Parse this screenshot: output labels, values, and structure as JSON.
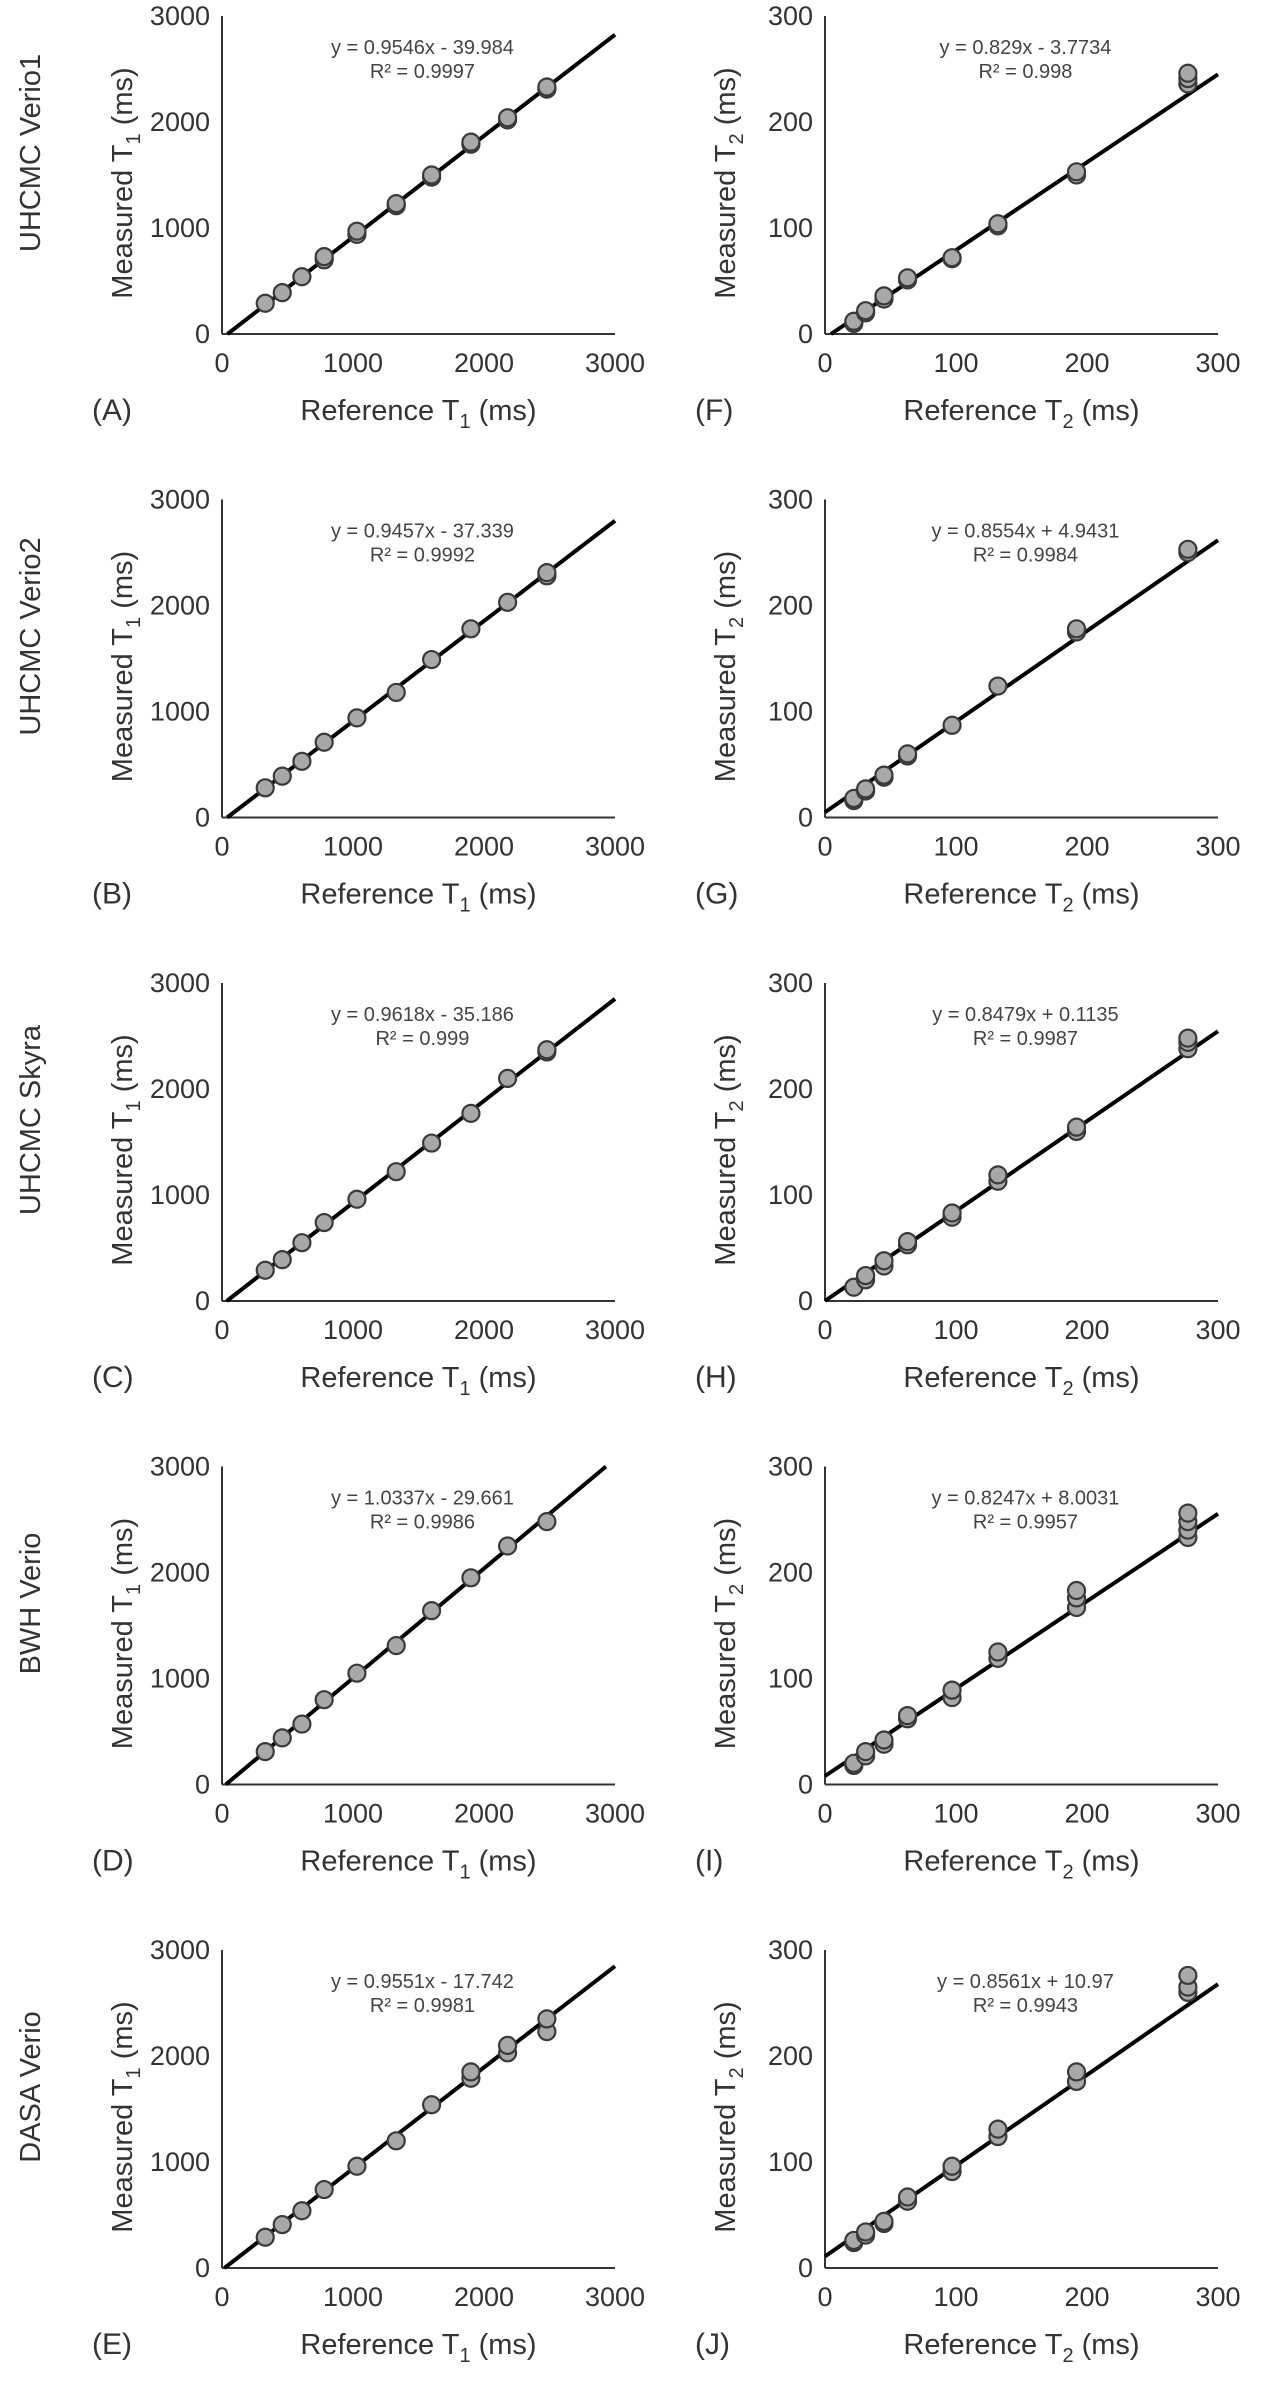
{
  "figure": {
    "row_labels": [
      "UHCMC Verio1",
      "UHCMC Verio2",
      "UHCMC Skyra",
      "BWH Verio",
      "DASA Verio"
    ]
  },
  "chart_data": [
    {
      "id": "A",
      "type": "scatter",
      "panel_letter": "(A)",
      "row_label": "UHCMC Verio1",
      "xlabel": "Reference T",
      "xlabel_sub": "1",
      "xlabel_unit": " (ms)",
      "ylabel": "Measured T",
      "ylabel_sub": "1",
      "ylabel_unit": " (ms)",
      "xlim": [
        0,
        3000
      ],
      "ylim": [
        0,
        3000
      ],
      "xticks": [
        0,
        1000,
        2000,
        3000
      ],
      "yticks": [
        0,
        1000,
        2000,
        3000
      ],
      "equation": "y = 0.9546x - 39.984",
      "r2": "R² = 0.9997",
      "slope": 0.9546,
      "intercept": -39.984,
      "points": [
        [
          330,
          290
        ],
        [
          460,
          390
        ],
        [
          610,
          540
        ],
        [
          780,
          700
        ],
        [
          780,
          730
        ],
        [
          1030,
          940
        ],
        [
          1030,
          970
        ],
        [
          1330,
          1210
        ],
        [
          1330,
          1230
        ],
        [
          1600,
          1480
        ],
        [
          1600,
          1500
        ],
        [
          1900,
          1790
        ],
        [
          1900,
          1810
        ],
        [
          2180,
          2020
        ],
        [
          2180,
          2040
        ],
        [
          2480,
          2310
        ],
        [
          2480,
          2330
        ]
      ]
    },
    {
      "id": "F",
      "type": "scatter",
      "panel_letter": "(F)",
      "row_label": "UHCMC Verio1",
      "xlabel": "Reference T",
      "xlabel_sub": "2",
      "xlabel_unit": " (ms)",
      "ylabel": "Measured T",
      "ylabel_sub": "2",
      "ylabel_unit": " (ms)",
      "xlim": [
        0,
        300
      ],
      "ylim": [
        0,
        300
      ],
      "xticks": [
        0,
        100,
        200,
        300
      ],
      "yticks": [
        0,
        100,
        200,
        300
      ],
      "equation": "y = 0.829x - 3.7734",
      "r2": "R² = 0.998",
      "slope": 0.829,
      "intercept": -3.7734,
      "points": [
        [
          22,
          10
        ],
        [
          22,
          12
        ],
        [
          31,
          20
        ],
        [
          31,
          22
        ],
        [
          45,
          33
        ],
        [
          45,
          36
        ],
        [
          63,
          51
        ],
        [
          63,
          53
        ],
        [
          97,
          71
        ],
        [
          97,
          72
        ],
        [
          132,
          102
        ],
        [
          132,
          104
        ],
        [
          192,
          150
        ],
        [
          192,
          153
        ],
        [
          277,
          236
        ],
        [
          277,
          241
        ],
        [
          277,
          246
        ]
      ]
    },
    {
      "id": "B",
      "type": "scatter",
      "panel_letter": "(B)",
      "row_label": "UHCMC Verio2",
      "xlabel": "Reference T",
      "xlabel_sub": "1",
      "xlabel_unit": " (ms)",
      "ylabel": "Measured T",
      "ylabel_sub": "1",
      "ylabel_unit": " (ms)",
      "xlim": [
        0,
        3000
      ],
      "ylim": [
        0,
        3000
      ],
      "xticks": [
        0,
        1000,
        2000,
        3000
      ],
      "yticks": [
        0,
        1000,
        2000,
        3000
      ],
      "equation": "y = 0.9457x - 37.339",
      "r2": "R² = 0.9992",
      "slope": 0.9457,
      "intercept": -37.339,
      "points": [
        [
          330,
          280
        ],
        [
          460,
          390
        ],
        [
          610,
          530
        ],
        [
          780,
          710
        ],
        [
          1030,
          940
        ],
        [
          1330,
          1180
        ],
        [
          1600,
          1490
        ],
        [
          1900,
          1780
        ],
        [
          2180,
          2030
        ],
        [
          2480,
          2280
        ],
        [
          2480,
          2310
        ]
      ]
    },
    {
      "id": "G",
      "type": "scatter",
      "panel_letter": "(G)",
      "row_label": "UHCMC Verio2",
      "xlabel": "Reference T",
      "xlabel_sub": "2",
      "xlabel_unit": " (ms)",
      "ylabel": "Measured T",
      "ylabel_sub": "2",
      "ylabel_unit": " (ms)",
      "xlim": [
        0,
        300
      ],
      "ylim": [
        0,
        300
      ],
      "xticks": [
        0,
        100,
        200,
        300
      ],
      "yticks": [
        0,
        100,
        200,
        300
      ],
      "equation": "y = 0.8554x + 4.9431",
      "r2": "R² = 0.9984",
      "slope": 0.8554,
      "intercept": 4.9431,
      "points": [
        [
          22,
          16
        ],
        [
          22,
          18
        ],
        [
          31,
          25
        ],
        [
          31,
          27
        ],
        [
          45,
          38
        ],
        [
          45,
          40
        ],
        [
          63,
          58
        ],
        [
          63,
          60
        ],
        [
          97,
          87
        ],
        [
          132,
          124
        ],
        [
          192,
          175
        ],
        [
          192,
          178
        ],
        [
          277,
          250
        ],
        [
          277,
          253
        ]
      ]
    },
    {
      "id": "C",
      "type": "scatter",
      "panel_letter": "(C)",
      "row_label": "UHCMC Skyra",
      "xlabel": "Reference T",
      "xlabel_sub": "1",
      "xlabel_unit": " (ms)",
      "ylabel": "Measured T",
      "ylabel_sub": "1",
      "ylabel_unit": " (ms)",
      "xlim": [
        0,
        3000
      ],
      "ylim": [
        0,
        3000
      ],
      "xticks": [
        0,
        1000,
        2000,
        3000
      ],
      "yticks": [
        0,
        1000,
        2000,
        3000
      ],
      "equation": "y = 0.9618x - 35.186",
      "r2": "R² = 0.999",
      "slope": 0.9618,
      "intercept": -35.186,
      "points": [
        [
          330,
          290
        ],
        [
          460,
          390
        ],
        [
          610,
          550
        ],
        [
          780,
          740
        ],
        [
          1030,
          960
        ],
        [
          1330,
          1220
        ],
        [
          1600,
          1490
        ],
        [
          1900,
          1770
        ],
        [
          2180,
          2100
        ],
        [
          2480,
          2350
        ],
        [
          2480,
          2370
        ]
      ]
    },
    {
      "id": "H",
      "type": "scatter",
      "panel_letter": "(H)",
      "row_label": "UHCMC Skyra",
      "xlabel": "Reference T",
      "xlabel_sub": "2",
      "xlabel_unit": " (ms)",
      "ylabel": "Measured T",
      "ylabel_sub": "2",
      "ylabel_unit": " (ms)",
      "xlim": [
        0,
        300
      ],
      "ylim": [
        0,
        300
      ],
      "xticks": [
        0,
        100,
        200,
        300
      ],
      "yticks": [
        0,
        100,
        200,
        300
      ],
      "equation": "y = 0.8479x + 0.1135",
      "r2": "R² = 0.9987",
      "slope": 0.8479,
      "intercept": 0.1135,
      "points": [
        [
          22,
          13
        ],
        [
          31,
          20
        ],
        [
          31,
          24
        ],
        [
          45,
          33
        ],
        [
          45,
          38
        ],
        [
          63,
          53
        ],
        [
          63,
          56
        ],
        [
          97,
          79
        ],
        [
          97,
          83
        ],
        [
          132,
          113
        ],
        [
          132,
          119
        ],
        [
          192,
          160
        ],
        [
          192,
          164
        ],
        [
          277,
          238
        ],
        [
          277,
          244
        ],
        [
          277,
          248
        ]
      ]
    },
    {
      "id": "D",
      "type": "scatter",
      "panel_letter": "(D)",
      "row_label": "BWH Verio",
      "xlabel": "Reference T",
      "xlabel_sub": "1",
      "xlabel_unit": " (ms)",
      "ylabel": "Measured T",
      "ylabel_sub": "1",
      "ylabel_unit": " (ms)",
      "xlim": [
        0,
        3000
      ],
      "ylim": [
        0,
        3000
      ],
      "xticks": [
        0,
        1000,
        2000,
        3000
      ],
      "yticks": [
        0,
        1000,
        2000,
        3000
      ],
      "equation": "y = 1.0337x - 29.661",
      "r2": "R² = 0.9986",
      "slope": 1.0337,
      "intercept": -29.661,
      "points": [
        [
          330,
          310
        ],
        [
          460,
          440
        ],
        [
          610,
          570
        ],
        [
          780,
          800
        ],
        [
          1030,
          1050
        ],
        [
          1330,
          1310
        ],
        [
          1600,
          1640
        ],
        [
          1900,
          1950
        ],
        [
          2180,
          2250
        ],
        [
          2480,
          2480
        ]
      ]
    },
    {
      "id": "I",
      "type": "scatter",
      "panel_letter": "(I)",
      "row_label": "BWH Verio",
      "xlabel": "Reference T",
      "xlabel_sub": "2",
      "xlabel_unit": " (ms)",
      "ylabel": "Measured T",
      "ylabel_sub": "2",
      "ylabel_unit": " (ms)",
      "xlim": [
        0,
        300
      ],
      "ylim": [
        0,
        300
      ],
      "xticks": [
        0,
        100,
        200,
        300
      ],
      "yticks": [
        0,
        100,
        200,
        300
      ],
      "equation": "y = 0.8247x + 8.0031",
      "r2": "R² = 0.9957",
      "slope": 0.8247,
      "intercept": 8.0031,
      "points": [
        [
          22,
          18
        ],
        [
          22,
          20
        ],
        [
          31,
          27
        ],
        [
          31,
          31
        ],
        [
          45,
          38
        ],
        [
          45,
          42
        ],
        [
          63,
          62
        ],
        [
          63,
          65
        ],
        [
          97,
          82
        ],
        [
          97,
          89
        ],
        [
          132,
          119
        ],
        [
          132,
          125
        ],
        [
          192,
          167
        ],
        [
          192,
          176
        ],
        [
          192,
          183
        ],
        [
          277,
          233
        ],
        [
          277,
          240
        ],
        [
          277,
          248
        ],
        [
          277,
          256
        ]
      ]
    },
    {
      "id": "E",
      "type": "scatter",
      "panel_letter": "(E)",
      "row_label": "DASA Verio",
      "xlabel": "Reference T",
      "xlabel_sub": "1",
      "xlabel_unit": " (ms)",
      "ylabel": "Measured T",
      "ylabel_sub": "1",
      "ylabel_unit": " (ms)",
      "xlim": [
        0,
        3000
      ],
      "ylim": [
        0,
        3000
      ],
      "xticks": [
        0,
        1000,
        2000,
        3000
      ],
      "yticks": [
        0,
        1000,
        2000,
        3000
      ],
      "equation": "y = 0.9551x - 17.742",
      "r2": "R² = 0.9981",
      "slope": 0.9551,
      "intercept": -17.742,
      "points": [
        [
          330,
          290
        ],
        [
          460,
          410
        ],
        [
          610,
          540
        ],
        [
          780,
          740
        ],
        [
          1030,
          960
        ],
        [
          1330,
          1200
        ],
        [
          1600,
          1540
        ],
        [
          1900,
          1790
        ],
        [
          1900,
          1850
        ],
        [
          2180,
          2030
        ],
        [
          2180,
          2100
        ],
        [
          2480,
          2230
        ],
        [
          2480,
          2350
        ]
      ]
    },
    {
      "id": "J",
      "type": "scatter",
      "panel_letter": "(J)",
      "row_label": "DASA Verio",
      "xlabel": "Reference T",
      "xlabel_sub": "2",
      "xlabel_unit": " (ms)",
      "ylabel": "Measured T",
      "ylabel_sub": "2",
      "ylabel_unit": " (ms)",
      "xlim": [
        0,
        300
      ],
      "ylim": [
        0,
        300
      ],
      "xticks": [
        0,
        100,
        200,
        300
      ],
      "yticks": [
        0,
        100,
        200,
        300
      ],
      "equation": "y = 0.8561x + 10.97",
      "r2": "R² = 0.9943",
      "slope": 0.8561,
      "intercept": 10.97,
      "points": [
        [
          22,
          24
        ],
        [
          22,
          26
        ],
        [
          31,
          31
        ],
        [
          31,
          34
        ],
        [
          45,
          42
        ],
        [
          45,
          44
        ],
        [
          63,
          63
        ],
        [
          63,
          67
        ],
        [
          97,
          91
        ],
        [
          97,
          96
        ],
        [
          132,
          124
        ],
        [
          132,
          131
        ],
        [
          192,
          176
        ],
        [
          192,
          185
        ],
        [
          277,
          260
        ],
        [
          277,
          265
        ],
        [
          277,
          276
        ]
      ]
    }
  ]
}
